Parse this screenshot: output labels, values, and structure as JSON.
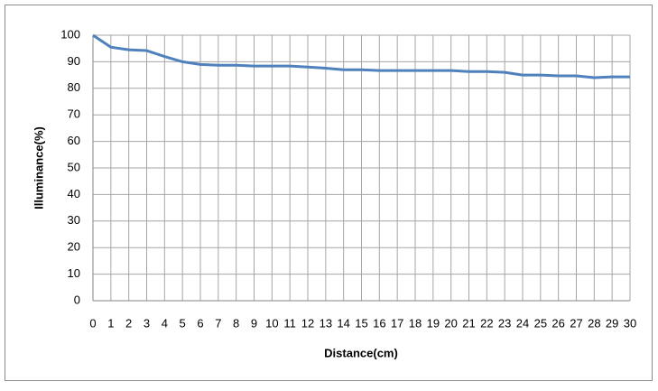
{
  "chart_data": {
    "type": "line",
    "xlabel": "Distance(cm)",
    "ylabel": "Illuminance(%)",
    "x": [
      0,
      1,
      2,
      3,
      4,
      5,
      6,
      7,
      8,
      9,
      10,
      11,
      12,
      13,
      14,
      15,
      16,
      17,
      18,
      19,
      20,
      21,
      22,
      23,
      24,
      25,
      26,
      27,
      28,
      29,
      30
    ],
    "series": [
      {
        "color": "#4f81bd",
        "values": [
          100,
          95.5,
          94.5,
          94.2,
          92,
          90,
          89,
          88.7,
          88.7,
          88.4,
          88.4,
          88.4,
          88,
          87.6,
          87,
          87,
          86.7,
          86.7,
          86.7,
          86.7,
          86.7,
          86.3,
          86.3,
          86,
          85,
          85,
          84.7,
          84.7,
          84,
          84.3,
          84.3
        ]
      }
    ],
    "xlim": [
      0,
      30
    ],
    "xticks": [
      0,
      1,
      2,
      3,
      4,
      5,
      6,
      7,
      8,
      9,
      10,
      11,
      12,
      13,
      14,
      15,
      16,
      17,
      18,
      19,
      20,
      21,
      22,
      23,
      24,
      25,
      26,
      27,
      28,
      29,
      30
    ],
    "ylim": [
      0,
      100
    ],
    "yticks": [
      0,
      10,
      20,
      30,
      40,
      50,
      60,
      70,
      80,
      90,
      100
    ],
    "grid": true
  }
}
